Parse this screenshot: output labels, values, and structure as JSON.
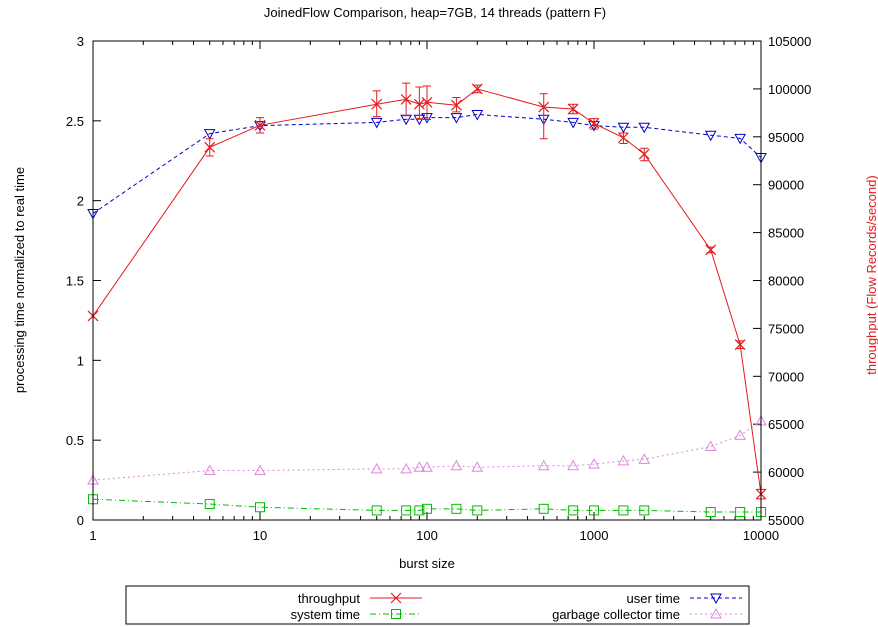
{
  "chart_data": {
    "type": "line",
    "title": "JoinedFlow Comparison, heap=7GB, 14 threads (pattern F)",
    "xlabel": "burst size",
    "ylabel_left": "processing time normalized to real time",
    "ylabel_right": "throughput (Flow Records/second)",
    "x_scale": "log",
    "xlim": [
      1,
      10000
    ],
    "x_ticks": [
      1,
      10,
      100,
      1000,
      10000
    ],
    "x_tick_labels": [
      "1",
      "10",
      "100",
      "1000",
      "10000"
    ],
    "ylim_left": [
      0,
      3
    ],
    "y_ticks_left": [
      0,
      0.5,
      1,
      1.5,
      2,
      2.5,
      3
    ],
    "y_tick_labels_left": [
      "0",
      "0.5",
      "1",
      "1.5",
      "2",
      "2.5",
      "3"
    ],
    "ylim_right": [
      55000,
      105000
    ],
    "y_ticks_right": [
      55000,
      60000,
      65000,
      70000,
      75000,
      80000,
      85000,
      90000,
      95000,
      100000,
      105000
    ],
    "y_tick_labels_right": [
      "55000",
      "60000",
      "65000",
      "70000",
      "75000",
      "80000",
      "85000",
      "90000",
      "95000",
      "100000",
      "105000"
    ],
    "grid": false,
    "legend_position": "bottom",
    "series": [
      {
        "name": "throughput",
        "axis": "right",
        "color": "#e41a1c",
        "marker": "x",
        "dash": "solid",
        "x": [
          1,
          5,
          10,
          50,
          75,
          90,
          100,
          150,
          200,
          500,
          750,
          1000,
          1500,
          2000,
          5000,
          7500,
          10000
        ],
        "y": [
          76300,
          93900,
          96200,
          98400,
          98900,
          98400,
          98600,
          98300,
          100000,
          98100,
          97900,
          96400,
          94900,
          93200,
          83200,
          73300,
          57700
        ],
        "err_low": [
          null,
          93000,
          95400,
          97100,
          97200,
          96900,
          96800,
          97600,
          99600,
          94800,
          97400,
          95800,
          94300,
          92500,
          82900,
          72900,
          57200
        ],
        "err_high": [
          null,
          94800,
          97000,
          99800,
          100600,
          100200,
          100300,
          99100,
          100400,
          99500,
          98400,
          96900,
          95400,
          93800,
          83500,
          73700,
          58200
        ]
      },
      {
        "name": "user time",
        "axis": "left",
        "color": "#0000cc",
        "marker": "triangle-down",
        "dash": "dashed",
        "x": [
          1,
          5,
          10,
          50,
          75,
          90,
          100,
          150,
          200,
          500,
          750,
          1000,
          1500,
          2000,
          5000,
          7500,
          10000
        ],
        "y": [
          1.92,
          2.42,
          2.47,
          2.49,
          2.51,
          2.51,
          2.52,
          2.52,
          2.54,
          2.51,
          2.49,
          2.47,
          2.46,
          2.46,
          2.41,
          2.39,
          2.27
        ]
      },
      {
        "name": "system time",
        "axis": "left",
        "color": "#00bb00",
        "marker": "square",
        "dash": "dashdot",
        "x": [
          1,
          5,
          10,
          50,
          75,
          90,
          100,
          150,
          200,
          500,
          750,
          1000,
          1500,
          2000,
          5000,
          7500,
          10000
        ],
        "y": [
          0.13,
          0.1,
          0.08,
          0.06,
          0.06,
          0.06,
          0.07,
          0.07,
          0.06,
          0.07,
          0.06,
          0.06,
          0.06,
          0.06,
          0.05,
          0.05,
          0.05
        ]
      },
      {
        "name": "garbage collector time",
        "axis": "left",
        "color": "#dd88dd",
        "marker": "triangle-up",
        "dash": "dotted",
        "x": [
          1,
          5,
          10,
          50,
          75,
          90,
          100,
          150,
          200,
          500,
          750,
          1000,
          1500,
          2000,
          5000,
          7500,
          10000
        ],
        "y": [
          0.25,
          0.31,
          0.31,
          0.32,
          0.32,
          0.33,
          0.33,
          0.34,
          0.33,
          0.34,
          0.34,
          0.35,
          0.37,
          0.38,
          0.46,
          0.53,
          0.62
        ]
      }
    ]
  }
}
